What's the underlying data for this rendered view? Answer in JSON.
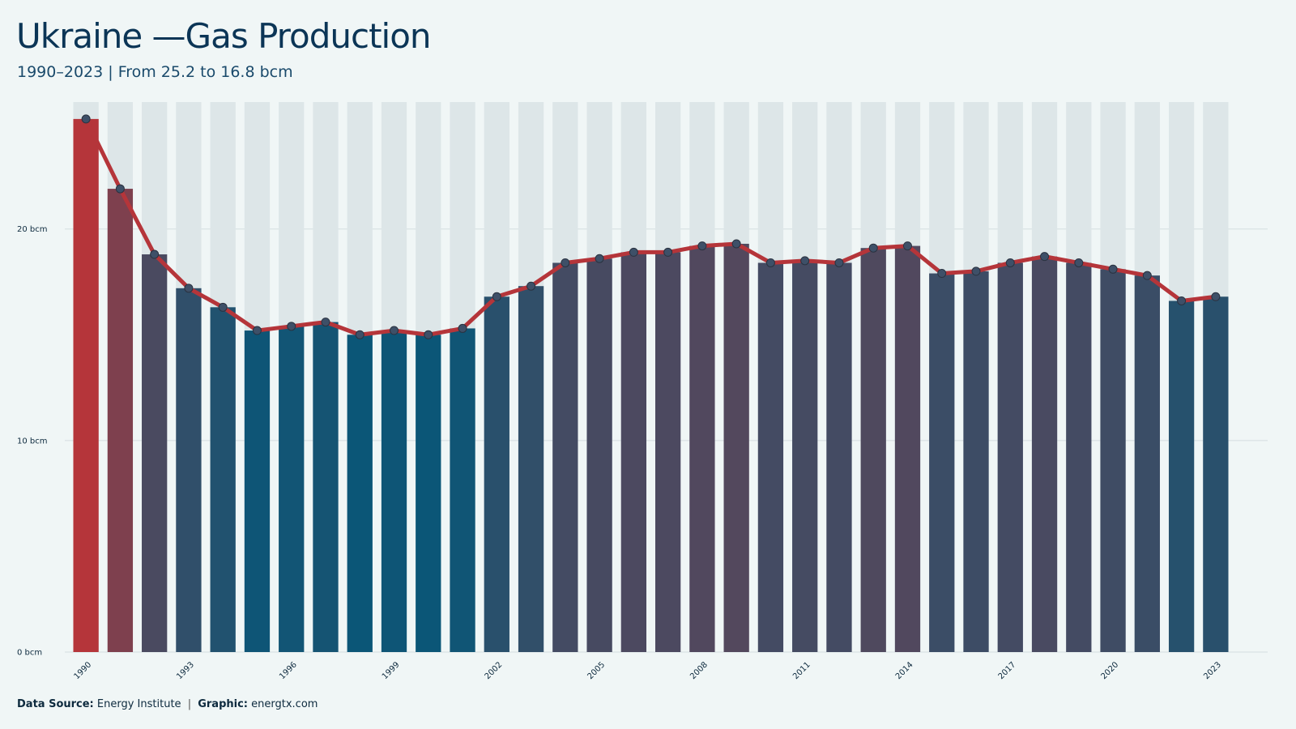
{
  "header": {
    "title": "Ukraine —Gas Production",
    "subtitle": "1990–2023 | From 25.2 to 16.8 bcm"
  },
  "footer": {
    "source_label": "Data Source:",
    "source_value": "Energy Institute",
    "separator": "|",
    "graphic_label": "Graphic:",
    "graphic_value": "energtx.com"
  },
  "chart_data": {
    "type": "bar",
    "title": "Ukraine —Gas Production",
    "subtitle": "1990–2023 | From 25.2 to 16.8 bcm",
    "xlabel": "",
    "ylabel": "",
    "unit": "bcm",
    "categories": [
      1990,
      1991,
      1992,
      1993,
      1994,
      1995,
      1996,
      1997,
      1998,
      1999,
      2000,
      2001,
      2002,
      2003,
      2004,
      2005,
      2006,
      2007,
      2008,
      2009,
      2010,
      2011,
      2012,
      2013,
      2014,
      2015,
      2016,
      2017,
      2018,
      2019,
      2020,
      2021,
      2022,
      2023
    ],
    "values": [
      25.2,
      21.9,
      18.8,
      17.2,
      16.3,
      15.2,
      15.4,
      15.6,
      15.0,
      15.2,
      15.0,
      15.3,
      16.8,
      17.3,
      18.4,
      18.6,
      18.9,
      18.9,
      19.2,
      19.3,
      18.4,
      18.5,
      18.4,
      19.1,
      19.2,
      17.9,
      18.0,
      18.4,
      18.7,
      18.4,
      18.1,
      17.8,
      16.6,
      16.8
    ],
    "overlay": "line",
    "x_tick_labels": [
      "1990",
      "1993",
      "1996",
      "1999",
      "2002",
      "2005",
      "2008",
      "2011",
      "2014",
      "2017",
      "2020",
      "2023"
    ],
    "y_ticks": [
      {
        "value": 0,
        "label": "0 bcm"
      },
      {
        "value": 10,
        "label": "10 bcm"
      },
      {
        "value": 20,
        "label": "20 bcm"
      }
    ],
    "ylim": [
      0,
      26
    ],
    "grid": "horizontal",
    "legend": "none",
    "colors": {
      "high": "#b5353a",
      "low": "#0b5677",
      "line": "#b5353a",
      "marker": "#3e5068",
      "grid": "#d4dde0",
      "bar_background": "#dde6e8"
    }
  }
}
